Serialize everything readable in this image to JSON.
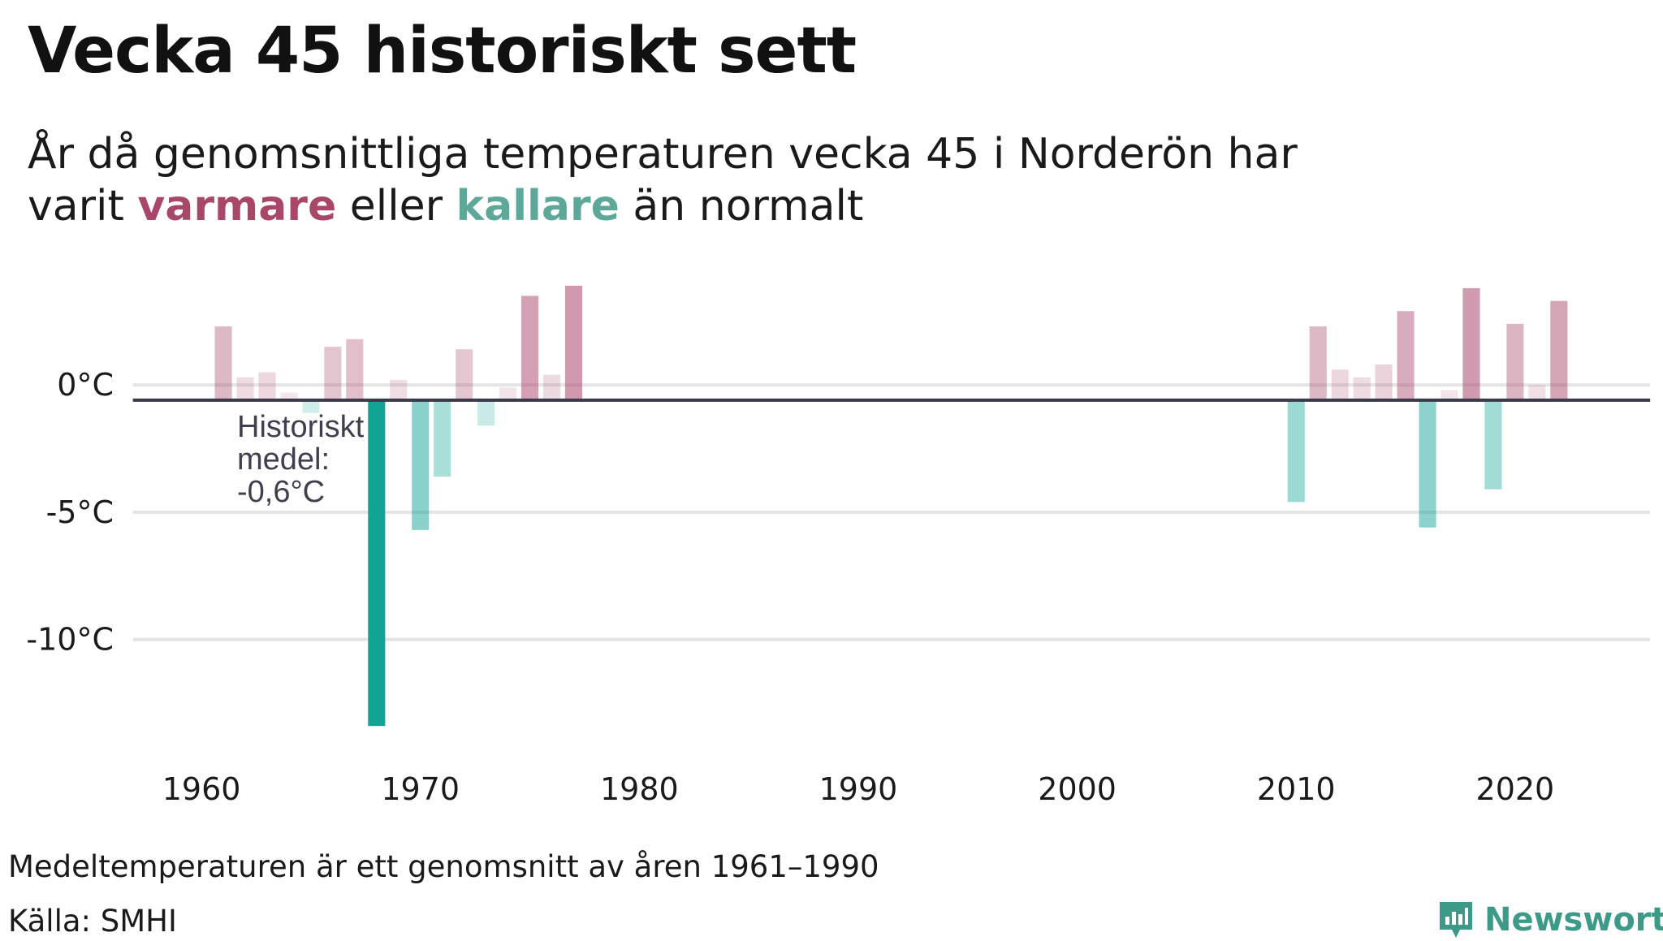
{
  "header": {
    "title": "Vecka 45 historiskt sett",
    "subtitle_line1": "År då genomsnittliga temperaturen vecka 45 i Norderön har",
    "subtitle_varit": "varit",
    "subtitle_warm": "varmare",
    "subtitle_eller": "eller",
    "subtitle_cold": "kallare",
    "subtitle_end": "än normalt"
  },
  "colors": {
    "warm": "#a8476a",
    "cold": "#12a596",
    "mean_line": "#3a3a4a",
    "grid": "#e4e4e4",
    "brand": "#3d9a88"
  },
  "chart_data": {
    "type": "bar",
    "title": "Vecka 45 historiskt sett",
    "xlabel": "",
    "ylabel": "",
    "x_ticks": [
      1960,
      1970,
      1980,
      1990,
      2000,
      2010,
      2020
    ],
    "y_ticks": [
      {
        "value": 0,
        "label": "0°C"
      },
      {
        "value": -5,
        "label": "-5°C"
      },
      {
        "value": -10,
        "label": "-10°C"
      }
    ],
    "xlim": [
      1957.5,
      2026.5
    ],
    "ylim": [
      -13.5,
      4.5
    ],
    "baseline": -0.6,
    "baseline_label": [
      "Historiskt",
      "medel:",
      "-0,6°C"
    ],
    "grid": true,
    "series": [
      {
        "x": [
          1961,
          1962,
          1963,
          1964,
          1965,
          1966,
          1967,
          1968,
          1969,
          1970,
          1971,
          1972,
          1973,
          1974,
          1975,
          1976,
          1977
        ],
        "values": [
          2.3,
          0.3,
          0.5,
          -0.3,
          -1.1,
          1.5,
          1.8,
          -13.4,
          0.2,
          -5.7,
          -3.6,
          1.4,
          -1.6,
          -0.1,
          3.5,
          0.4,
          3.9
        ]
      },
      {
        "x": [
          2010,
          2011,
          2012,
          2013,
          2014,
          2015,
          2016,
          2017,
          2018,
          2019,
          2020,
          2021,
          2022
        ],
        "values": [
          -4.6,
          2.3,
          0.6,
          0.3,
          0.8,
          2.9,
          -5.6,
          -0.2,
          3.8,
          -4.1,
          2.4,
          0.0,
          3.3
        ]
      }
    ]
  },
  "footer": {
    "note": "Medeltemperaturen är ett genomsnitt av åren 1961–1990",
    "source": "Källa: SMHI",
    "brand": "Newsworthy"
  }
}
